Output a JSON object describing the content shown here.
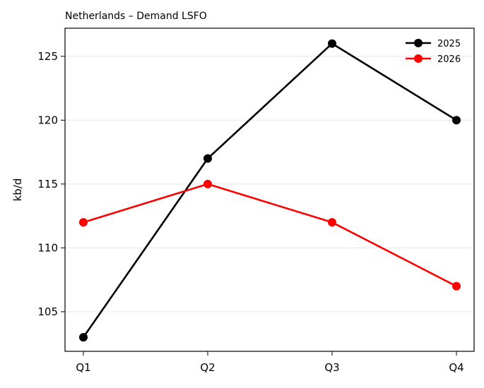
{
  "chart_data": {
    "type": "line",
    "title": "Netherlands – Demand LSFO",
    "xlabel": "",
    "ylabel": "kb/d",
    "categories": [
      "Q1",
      "Q2",
      "Q3",
      "Q4"
    ],
    "ylim": [
      101.9,
      127.2
    ],
    "yticks": [
      105,
      110,
      115,
      120,
      125
    ],
    "grid": "horizontal",
    "legend_position": "top-right",
    "series": [
      {
        "name": "2025",
        "color": "#000000",
        "values": [
          103,
          117,
          126,
          120
        ]
      },
      {
        "name": "2026",
        "color": "#ff0000",
        "values": [
          112,
          115,
          112,
          107
        ]
      }
    ]
  }
}
